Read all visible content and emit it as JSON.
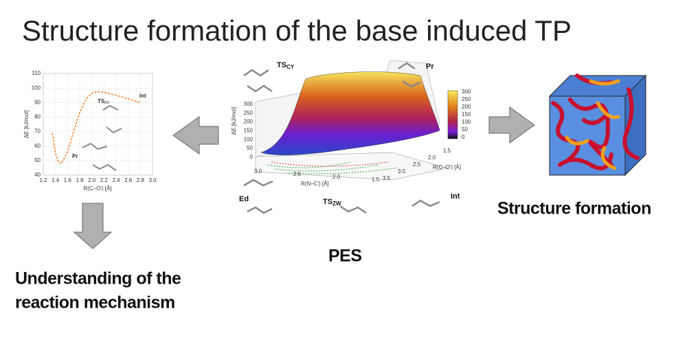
{
  "title": "Structure formation of the base induced TP",
  "chart_data": {
    "type": "line",
    "x": [
      1.35,
      1.4,
      1.45,
      1.5,
      1.6,
      1.7,
      1.8,
      1.9,
      2.0,
      2.1,
      2.2,
      2.4,
      2.6,
      2.8
    ],
    "series": [
      {
        "color": "#f47b20",
        "values": [
          69,
          55,
          49,
          48,
          56,
          70,
          83,
          92,
          96.5,
          97.5,
          97,
          95,
          92.5,
          90
        ]
      }
    ],
    "xlim": [
      1.2,
      3.0
    ],
    "ylim": [
      40,
      110
    ],
    "xticks": [
      1.2,
      1.4,
      1.6,
      1.8,
      {
        "value": 2,
        "label": "2.0"
      },
      2.2,
      2.4,
      2.6,
      2.8,
      {
        "value": 3,
        "label": "3.0"
      }
    ],
    "yticks": [
      40,
      50,
      60,
      70,
      80,
      90,
      100,
      110
    ],
    "x_label": "R(C–O') [Å]",
    "y_label": "ΔE [kJ/mol]",
    "annotations": [
      {
        "text": "TS",
        "sub": "CY"
      },
      {
        "text": "Int"
      },
      {
        "text": "Pr"
      }
    ]
  },
  "pes": {
    "z_label": "ΔE [kJ/mol]",
    "z_ticks": [
      300,
      250,
      200,
      150,
      100,
      50,
      0
    ],
    "colorbar_ticks": [
      300,
      250,
      200,
      150,
      100,
      50,
      0
    ],
    "x_label": "R(N–C') [Å]",
    "x_ticks": [
      "3.0",
      "2.5",
      "2.0",
      "1.5"
    ],
    "y_label": "R(C–O') [Å]",
    "y_ticks": [
      "1.5",
      "2.0",
      "2.5",
      "3.0",
      "3.5"
    ],
    "labels": {
      "ts_cy": {
        "text": "TS",
        "sub": "CY"
      },
      "pr": "Pr",
      "ed": "Ed",
      "ts_zw": {
        "text": "TS",
        "sub": "ZW"
      },
      "int": "Int"
    },
    "caption": "PES"
  },
  "structure_caption": "Structure formation",
  "mechanism_caption": [
    "Understanding of the",
    "reaction mechanism"
  ]
}
